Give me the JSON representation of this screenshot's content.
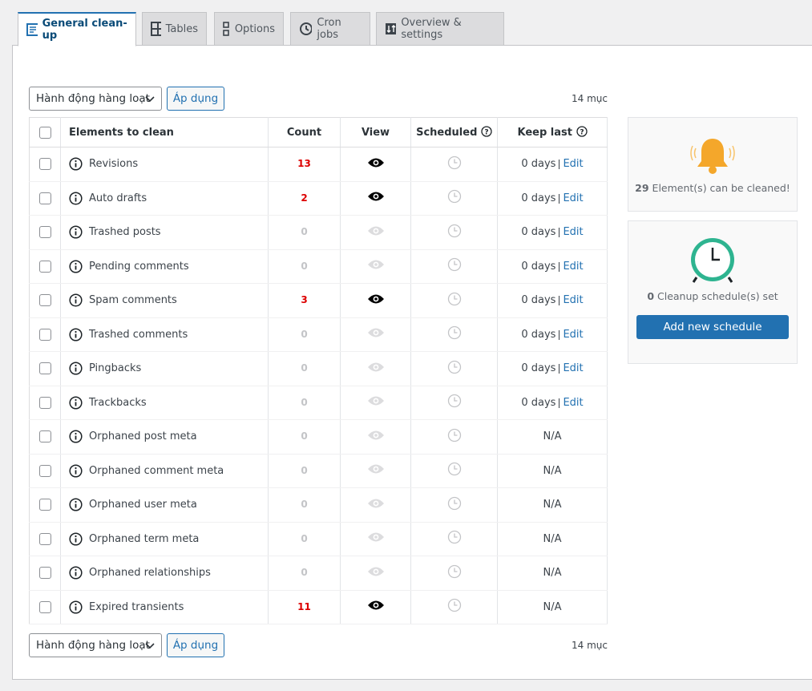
{
  "tabs": [
    "General clean-up",
    "Tables",
    "Options",
    "Cron jobs",
    "Overview & settings"
  ],
  "bulk_action": "Hành động hàng loạt",
  "apply": "Áp dụng",
  "item_count": "14 mục",
  "table": {
    "headers": [
      "Elements to clean",
      "Count",
      "View",
      "Scheduled",
      "Keep last"
    ],
    "rows": [
      {
        "name": "Revisions",
        "count": 13,
        "keep_last": "0 days",
        "edit": "Edit"
      },
      {
        "name": "Auto drafts",
        "count": 2,
        "keep_last": "0 days",
        "edit": "Edit"
      },
      {
        "name": "Trashed posts",
        "count": 0,
        "keep_last": "0 days",
        "edit": "Edit"
      },
      {
        "name": "Pending comments",
        "count": 0,
        "keep_last": "0 days",
        "edit": "Edit"
      },
      {
        "name": "Spam comments",
        "count": 3,
        "keep_last": "0 days",
        "edit": "Edit"
      },
      {
        "name": "Trashed comments",
        "count": 0,
        "keep_last": "0 days",
        "edit": "Edit"
      },
      {
        "name": "Pingbacks",
        "count": 0,
        "keep_last": "0 days",
        "edit": "Edit"
      },
      {
        "name": "Trackbacks",
        "count": 0,
        "keep_last": "0 days",
        "edit": "Edit"
      },
      {
        "name": "Orphaned post meta",
        "count": 0,
        "keep_last": "N/A"
      },
      {
        "name": "Orphaned comment meta",
        "count": 0,
        "keep_last": "N/A"
      },
      {
        "name": "Orphaned user meta",
        "count": 0,
        "keep_last": "N/A"
      },
      {
        "name": "Orphaned term meta",
        "count": 0,
        "keep_last": "N/A"
      },
      {
        "name": "Orphaned relationships",
        "count": 0,
        "keep_last": "N/A"
      },
      {
        "name": "Expired transients",
        "count": 11,
        "keep_last": "N/A"
      }
    ]
  },
  "cleanable": {
    "count": 29,
    "text": "Element(s) can be cleaned!"
  },
  "schedules": {
    "count": 0,
    "text": "Cleanup schedule(s) set",
    "button": "Add new schedule"
  }
}
